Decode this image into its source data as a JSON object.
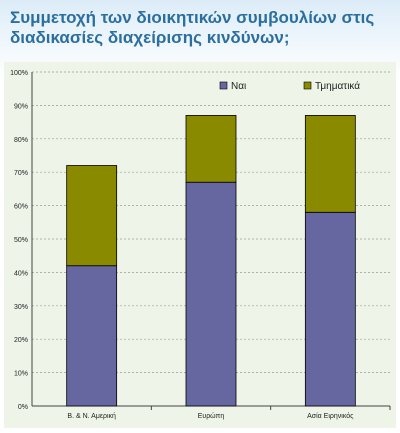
{
  "header": {
    "title_line1": "Συμμετοχή των διοικητικών συμβουλίων στις",
    "title_line2": "διαδικασίες διαχείρισης κινδύνων;"
  },
  "chart_data": {
    "type": "bar",
    "stacked": true,
    "categories": [
      "Β. & Ν. Αμερική",
      "Ευρώπη",
      "Ασία Ειρηνικός"
    ],
    "series": [
      {
        "name": "Ναι",
        "values": [
          42,
          67,
          58
        ],
        "color": "#6666a0"
      },
      {
        "name": "Τμηματικά",
        "values": [
          30,
          20,
          29
        ],
        "color": "#8a8a00"
      }
    ],
    "yticks": [
      "0%",
      "10%",
      "20%",
      "30%",
      "40%",
      "50%",
      "60%",
      "70%",
      "80%",
      "90%",
      "100%"
    ],
    "ylim": [
      0,
      100
    ],
    "grid": true,
    "legend": "top-right"
  }
}
